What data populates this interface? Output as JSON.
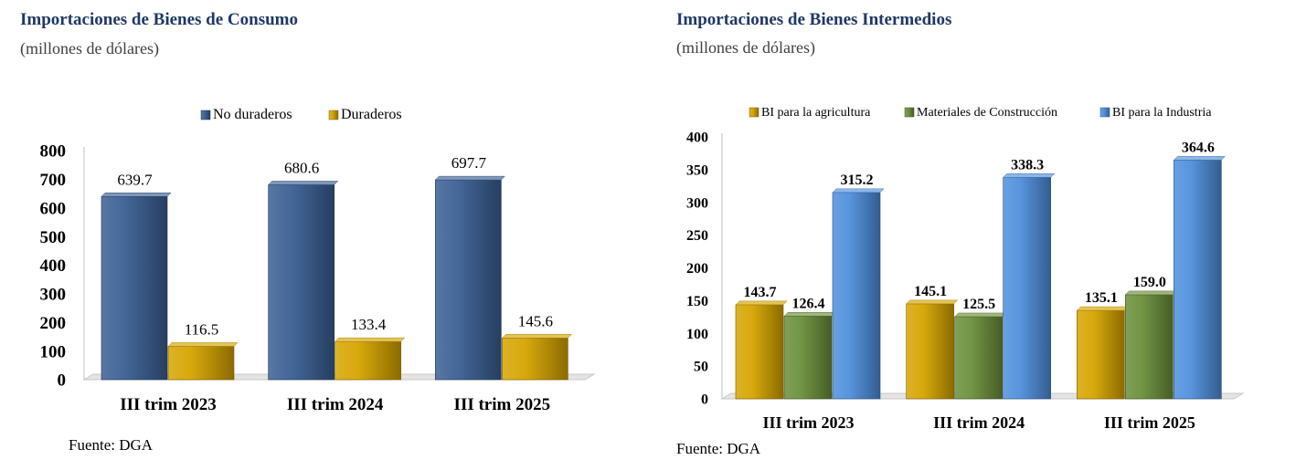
{
  "left": {
    "title": "Importaciones de Bienes de Consumo",
    "subtitle": "(millones de dólares)",
    "source": "Fuente: DGA",
    "chart_data": {
      "type": "bar",
      "categories": [
        "III trim 2023",
        "III trim 2024",
        "III trim 2025"
      ],
      "series": [
        {
          "name": "No duraderos",
          "values": [
            639.7,
            680.6,
            697.7
          ],
          "color": "#3a5f94"
        },
        {
          "name": "Duraderos",
          "values": [
            116.5,
            133.4,
            145.6
          ],
          "color": "#d6a400"
        }
      ],
      "value_labels": [
        [
          "639.7",
          "680.6",
          "697.7"
        ],
        [
          "116.5",
          "133.4",
          "145.6"
        ]
      ],
      "ylim": [
        0,
        800
      ],
      "yticks": [
        "0",
        "100",
        "200",
        "300",
        "400",
        "500",
        "600",
        "700",
        "800"
      ],
      "legend_position": "top-center",
      "grid": false
    }
  },
  "right": {
    "title": "Importaciones de Bienes Intermedios",
    "subtitle": "(millones de dólares)",
    "source": "Fuente: DGA",
    "chart_data": {
      "type": "bar",
      "categories": [
        "III trim 2023",
        "III trim 2024",
        "III trim 2025"
      ],
      "series": [
        {
          "name": "BI para la agricultura",
          "values": [
            143.7,
            145.1,
            135.1
          ],
          "color": "#d6a400"
        },
        {
          "name": "Materiales de Construcción",
          "values": [
            126.4,
            125.5,
            159.0
          ],
          "color": "#6b8f3a"
        },
        {
          "name": "BI para la Industria",
          "values": [
            315.2,
            338.3,
            364.6
          ],
          "color": "#4f8fdc"
        }
      ],
      "value_labels": [
        [
          "143.7",
          "145.1",
          "135.1"
        ],
        [
          "126.4",
          "125.5",
          "159.0"
        ],
        [
          "315.2",
          "338.3",
          "364.6"
        ]
      ],
      "ylim": [
        0,
        400
      ],
      "yticks": [
        "0",
        "50",
        "100",
        "150",
        "200",
        "250",
        "300",
        "350",
        "400"
      ],
      "legend_position": "top-center",
      "grid": false
    }
  }
}
